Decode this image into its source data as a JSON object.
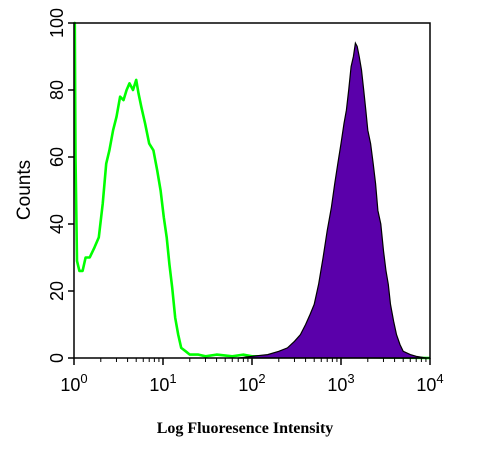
{
  "chart_data": {
    "type": "area",
    "xlabel": "Log Fluoresence Intensity",
    "ylabel": "Counts",
    "x_scale": "log",
    "xlim": [
      1,
      10000
    ],
    "ylim": [
      0,
      100
    ],
    "x_ticks": [
      {
        "value": 1,
        "base": "10",
        "exp": "0"
      },
      {
        "value": 10,
        "base": "10",
        "exp": "1"
      },
      {
        "value": 100,
        "base": "10",
        "exp": "2"
      },
      {
        "value": 1000,
        "base": "10",
        "exp": "3"
      },
      {
        "value": 10000,
        "base": "10",
        "exp": "4"
      }
    ],
    "y_ticks": [
      "0",
      "20",
      "40",
      "60",
      "80",
      "100"
    ],
    "grid": false,
    "series": [
      {
        "style": "outline",
        "color": "#00ff00",
        "points": [
          [
            1.0,
            100
          ],
          [
            1.02,
            100
          ],
          [
            1.04,
            60
          ],
          [
            1.08,
            29
          ],
          [
            1.15,
            26
          ],
          [
            1.25,
            26
          ],
          [
            1.35,
            30
          ],
          [
            1.5,
            30
          ],
          [
            1.7,
            33
          ],
          [
            1.9,
            36
          ],
          [
            2.1,
            46
          ],
          [
            2.3,
            58
          ],
          [
            2.5,
            62
          ],
          [
            2.75,
            68
          ],
          [
            3.0,
            72
          ],
          [
            3.3,
            78
          ],
          [
            3.6,
            77
          ],
          [
            3.9,
            80
          ],
          [
            4.2,
            82
          ],
          [
            4.6,
            80
          ],
          [
            5.0,
            83
          ],
          [
            5.3,
            79
          ],
          [
            5.7,
            75
          ],
          [
            6.3,
            70
          ],
          [
            7.0,
            64
          ],
          [
            7.8,
            62
          ],
          [
            8.6,
            56
          ],
          [
            9.4,
            50
          ],
          [
            10.2,
            42
          ],
          [
            11.0,
            36
          ],
          [
            11.8,
            28
          ],
          [
            12.7,
            21
          ],
          [
            13.7,
            12
          ],
          [
            14.8,
            7
          ],
          [
            16.0,
            3
          ],
          [
            18.0,
            2
          ],
          [
            20.0,
            1
          ],
          [
            25,
            1
          ],
          [
            30,
            0.5
          ],
          [
            40,
            1
          ],
          [
            60,
            0.5
          ],
          [
            80,
            1
          ],
          [
            100,
            0.5
          ],
          [
            200,
            0.5
          ],
          [
            500,
            0.5
          ],
          [
            700,
            1
          ],
          [
            1000,
            0.3
          ],
          [
            10000,
            0
          ]
        ]
      },
      {
        "style": "filled",
        "color": "#5a00aa",
        "points": [
          [
            70,
            0
          ],
          [
            100,
            0.5
          ],
          [
            150,
            1
          ],
          [
            200,
            2
          ],
          [
            250,
            3
          ],
          [
            300,
            5
          ],
          [
            350,
            7
          ],
          [
            400,
            10
          ],
          [
            450,
            13
          ],
          [
            500,
            16
          ],
          [
            560,
            22
          ],
          [
            630,
            30
          ],
          [
            700,
            38
          ],
          [
            780,
            45
          ],
          [
            850,
            52
          ],
          [
            920,
            58
          ],
          [
            1000,
            64
          ],
          [
            1080,
            70
          ],
          [
            1150,
            74
          ],
          [
            1220,
            80
          ],
          [
            1300,
            87
          ],
          [
            1380,
            90
          ],
          [
            1450,
            94
          ],
          [
            1520,
            93
          ],
          [
            1600,
            90
          ],
          [
            1700,
            86
          ],
          [
            1800,
            80
          ],
          [
            1900,
            74
          ],
          [
            2000,
            68
          ],
          [
            2150,
            64
          ],
          [
            2300,
            58
          ],
          [
            2450,
            52
          ],
          [
            2600,
            44
          ],
          [
            2800,
            40
          ],
          [
            3000,
            32
          ],
          [
            3200,
            26
          ],
          [
            3400,
            22
          ],
          [
            3600,
            16
          ],
          [
            3900,
            11
          ],
          [
            4200,
            7
          ],
          [
            4600,
            4
          ],
          [
            5000,
            2
          ],
          [
            6000,
            1
          ],
          [
            7000,
            0.5
          ],
          [
            9000,
            0
          ]
        ]
      }
    ]
  }
}
